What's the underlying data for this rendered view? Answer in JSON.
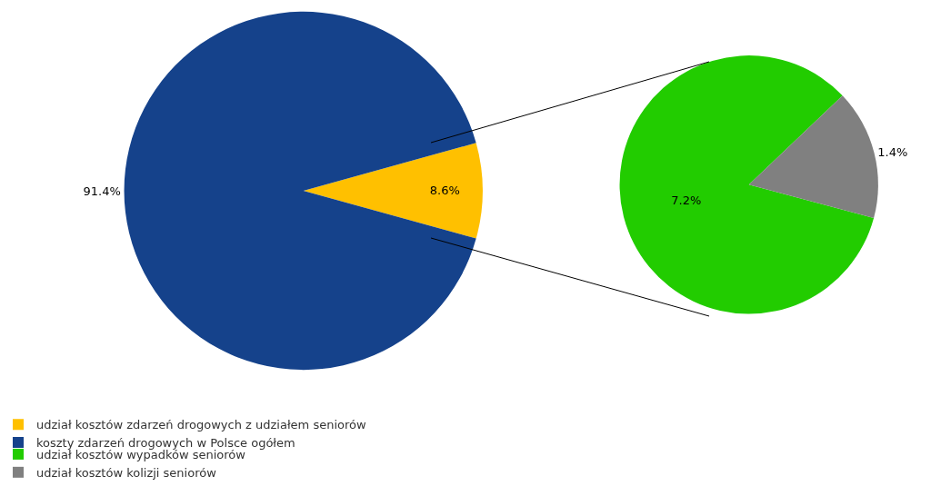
{
  "chart_data": [
    {
      "type": "pie",
      "categories": [
        "udział kosztów zdarzeń drogowych z udziałem seniorów",
        "koszty zdarzeń drogowych w Polsce ogółem"
      ],
      "values": [
        8.6,
        91.4
      ],
      "colors": [
        "#ffc000",
        "#15428b"
      ],
      "value_labels": [
        "8.6%",
        "91.4%"
      ],
      "legend": "bottom"
    },
    {
      "type": "pie",
      "categories": [
        "udział kosztów wypadków seniorów",
        "udział kosztów kolizji seniorów"
      ],
      "values": [
        7.2,
        1.4
      ],
      "colors": [
        "#22cc00",
        "#808080"
      ],
      "value_labels": [
        "7.2%",
        "1.4%"
      ],
      "legend": "bottom"
    }
  ]
}
